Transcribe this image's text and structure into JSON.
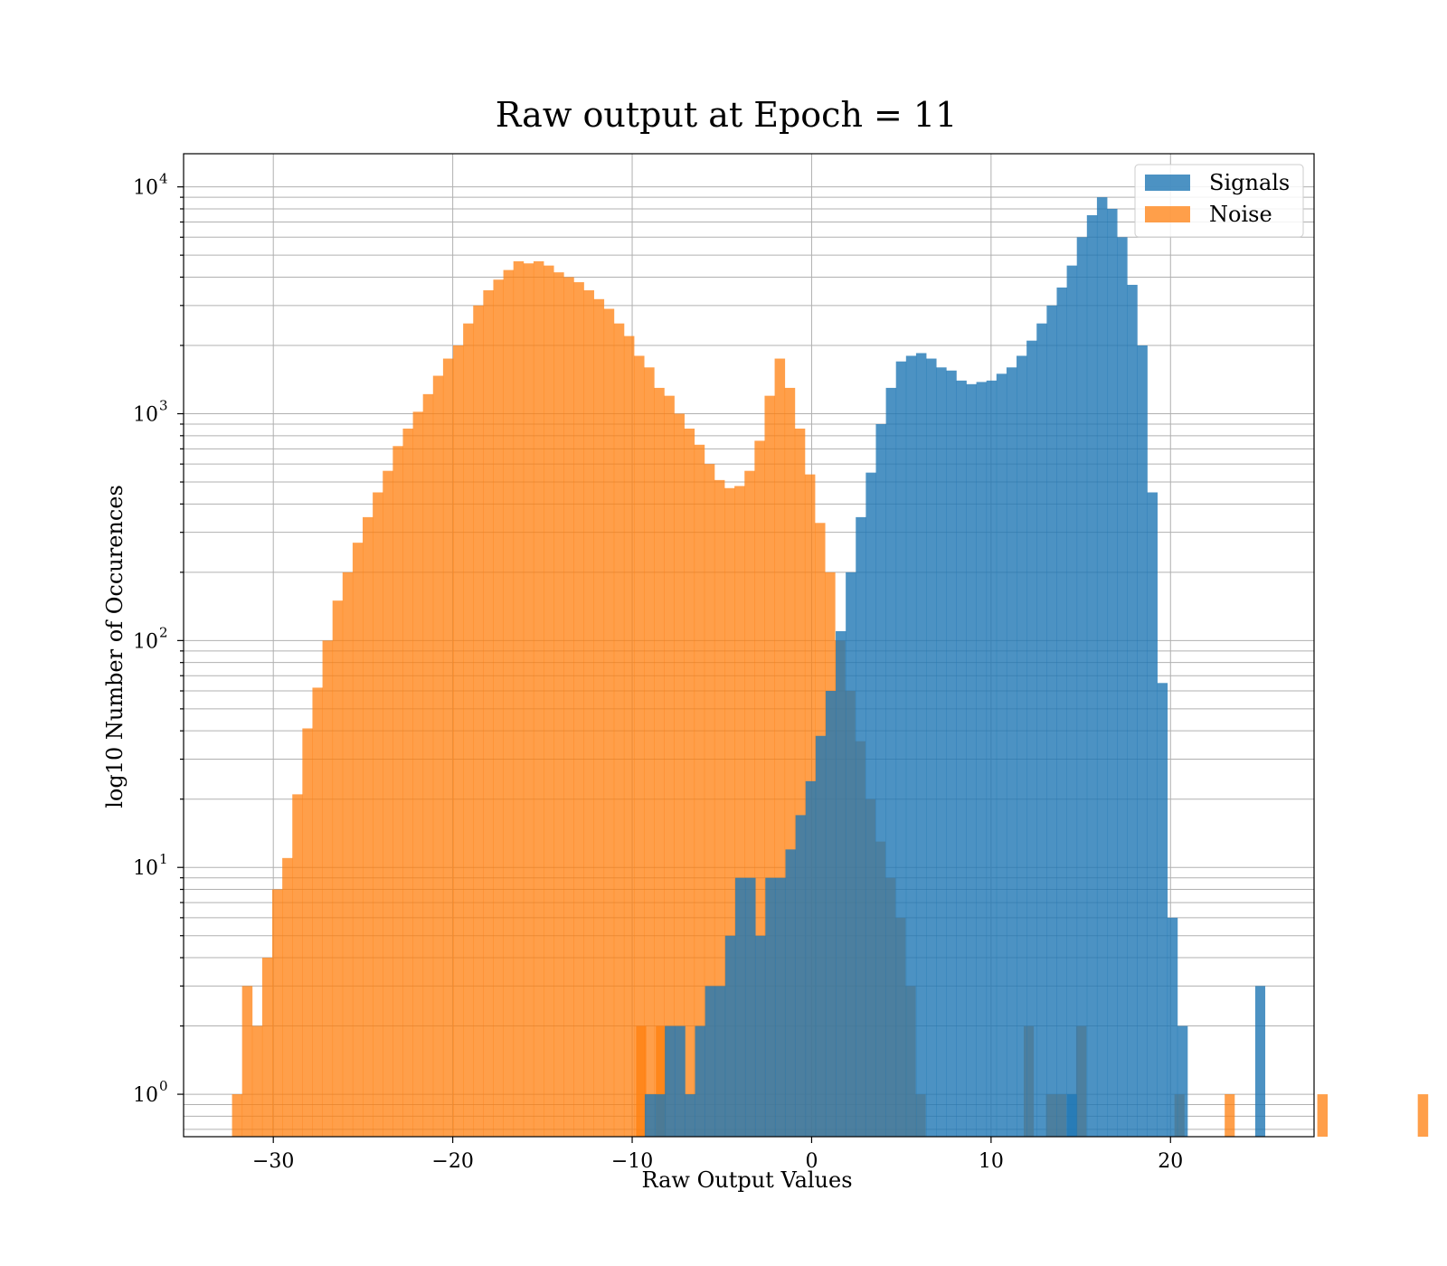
{
  "chart_data": {
    "type": "histogram",
    "title": "Raw output at Epoch = 11",
    "xlabel": "Raw Output Values",
    "ylabel": "log10 Number of Occurences",
    "xlim": [
      -35,
      28
    ],
    "ylim": [
      0.65,
      14000
    ],
    "yscale": "log",
    "grid": true,
    "legend_position": "top-right",
    "x_ticks": [
      -30,
      -20,
      -10,
      0,
      10,
      20
    ],
    "x_tick_labels": [
      "−30",
      "−20",
      "−10",
      "0",
      "10",
      "20"
    ],
    "y_ticks": [
      1,
      10,
      100,
      1000,
      10000
    ],
    "y_tick_labels": [
      {
        "base": "10",
        "exp": "0"
      },
      {
        "base": "10",
        "exp": "1"
      },
      {
        "base": "10",
        "exp": "2"
      },
      {
        "base": "10",
        "exp": "3"
      },
      {
        "base": "10",
        "exp": "4"
      }
    ],
    "series": [
      {
        "name": "Noise",
        "color": "#ff7f0e",
        "opacity": 0.75,
        "bin_width": 0.56,
        "x_start": -32.3,
        "counts": [
          1,
          3,
          2,
          4,
          8,
          11,
          21,
          41,
          62,
          100,
          150,
          200,
          270,
          350,
          450,
          560,
          720,
          860,
          1020,
          1220,
          1470,
          1750,
          2000,
          2500,
          3000,
          3500,
          3900,
          4300,
          4700,
          4600,
          4700,
          4500,
          4200,
          4000,
          3800,
          3500,
          3200,
          2900,
          2500,
          2200,
          1800,
          1600,
          1300,
          1200,
          1000,
          860,
          730,
          600,
          510,
          470,
          480,
          560,
          760,
          1200,
          1750,
          1300,
          860,
          540,
          330,
          200,
          100,
          60,
          36,
          20,
          13,
          9,
          6,
          3,
          1,
          0,
          0,
          0,
          0,
          0,
          0,
          0,
          0,
          0,
          0,
          0,
          0,
          1,
          1,
          0,
          2,
          0,
          0,
          0,
          0,
          0,
          0,
          0,
          0,
          0,
          0,
          0,
          0,
          0,
          0,
          0,
          0,
          0,
          0,
          0,
          0,
          0,
          0,
          0,
          1,
          0,
          0,
          0,
          0,
          0,
          0,
          0,
          0,
          0,
          1
        ],
        "extra_bars": [
          {
            "x": 12.1,
            "count": 2
          },
          {
            "x": 20.5,
            "count": 1
          },
          {
            "x": 23.3,
            "count": 1
          },
          {
            "x": -9.5,
            "count": 2
          },
          {
            "x": -8.4,
            "count": 2
          }
        ]
      },
      {
        "name": "Signals",
        "color": "#1f77b4",
        "opacity": 0.8,
        "bin_width": 0.56,
        "x_start": -9.3,
        "counts": [
          1,
          1,
          2,
          2,
          1,
          2,
          3,
          3,
          5,
          9,
          9,
          5,
          9,
          9,
          12,
          17,
          24,
          38,
          60,
          110,
          200,
          350,
          550,
          900,
          1300,
          1700,
          1800,
          1850,
          1750,
          1600,
          1550,
          1400,
          1350,
          1380,
          1400,
          1500,
          1600,
          1800,
          2100,
          2500,
          3000,
          3600,
          4500,
          6000,
          7500,
          9000,
          8000,
          6000,
          3700,
          2000,
          450,
          65,
          6,
          2
        ],
        "extra_bars": [
          {
            "x": 14.5,
            "count": 1
          },
          {
            "x": 25.0,
            "count": 3
          }
        ]
      }
    ]
  }
}
